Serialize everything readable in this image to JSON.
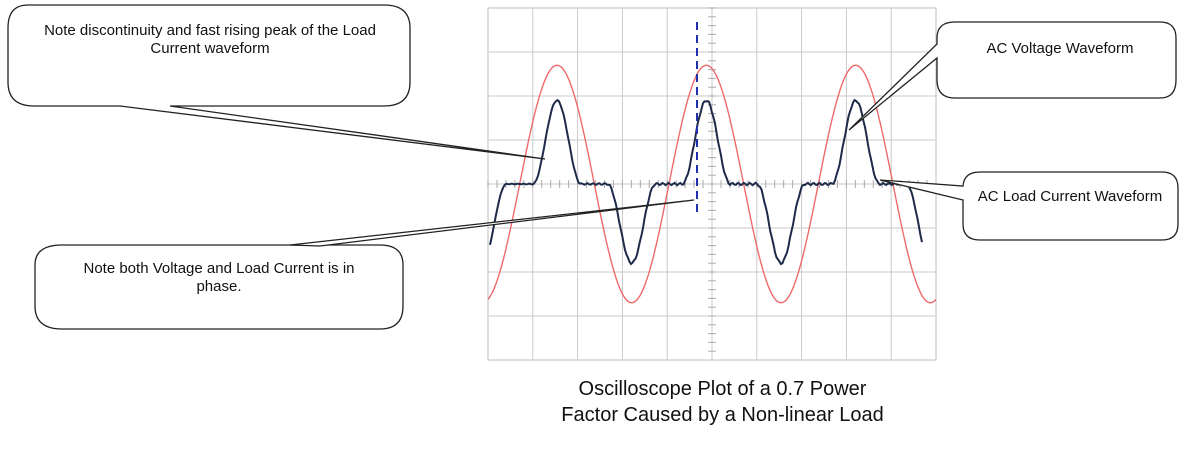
{
  "callouts": {
    "discontinuity": "Note discontinuity and fast rising peak of the Load Current waveform",
    "in_phase": "Note both Voltage and Load Current is in phase.",
    "ac_voltage": "AC Voltage Waveform",
    "ac_load_current": "AC Load Current Waveform"
  },
  "caption": "Oscilloscope Plot of a 0.7 Power Factor Caused by a Non-linear Load",
  "colors": {
    "voltage_trace": "#f06a6a",
    "current_trace": "#1e2a4a",
    "grid": "#c9c9c9",
    "phase_marker": "#1f2fb0"
  },
  "scope": {
    "divisions_x": 10,
    "divisions_y": 8,
    "voltage_peak_div": 2.7,
    "current_peak_div": 1.9,
    "current_trough_div": -1.8,
    "voltage_cycles_visible": 3
  }
}
